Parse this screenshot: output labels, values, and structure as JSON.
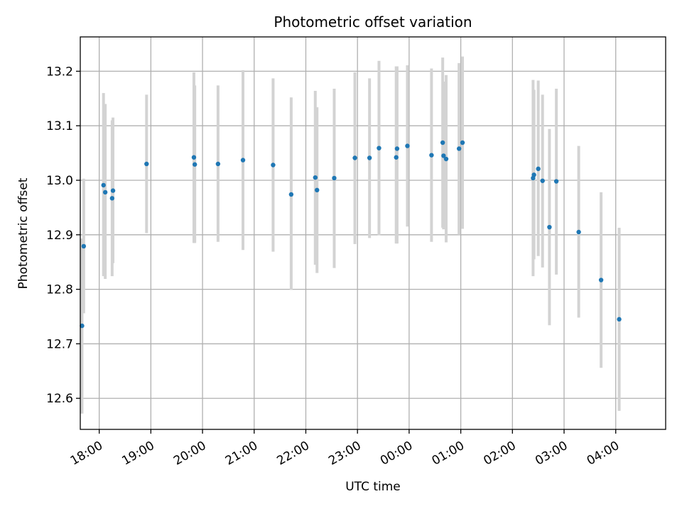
{
  "chart_data": {
    "type": "scatter",
    "title": "Photometric offset variation",
    "xlabel": "UTC time",
    "ylabel": "Photometric offset",
    "x_ticks": [
      "18:00",
      "19:00",
      "20:00",
      "21:00",
      "22:00",
      "23:00",
      "00:00",
      "01:00",
      "02:00",
      "03:00",
      "04:00"
    ],
    "y_ticks": [
      "12.6",
      "12.7",
      "12.8",
      "12.9",
      "13.0",
      "13.1",
      "13.2"
    ],
    "ylim": [
      12.543,
      13.263
    ],
    "xlim": [
      "17:38",
      "04:58"
    ],
    "grid": true,
    "colors": {
      "points": "#1f77b4",
      "errorbars": "#d3d3d3",
      "grid": "#b0b0b0"
    },
    "points": [
      {
        "x": "17:40",
        "y": 12.733,
        "ylow": 12.572,
        "yhigh": 12.893
      },
      {
        "x": "17:42",
        "y": 12.879,
        "ylow": 12.756,
        "yhigh": 13.003
      },
      {
        "x": "18:05",
        "y": 12.991,
        "ylow": 12.824,
        "yhigh": 13.16
      },
      {
        "x": "18:07",
        "y": 12.978,
        "ylow": 12.819,
        "yhigh": 13.14
      },
      {
        "x": "18:15",
        "y": 12.967,
        "ylow": 12.824,
        "yhigh": 13.11
      },
      {
        "x": "18:16",
        "y": 12.981,
        "ylow": 12.848,
        "yhigh": 13.115
      },
      {
        "x": "18:55",
        "y": 13.03,
        "ylow": 12.903,
        "yhigh": 13.157
      },
      {
        "x": "19:50",
        "y": 13.042,
        "ylow": 12.885,
        "yhigh": 13.198
      },
      {
        "x": "19:51",
        "y": 13.029,
        "ylow": 12.885,
        "yhigh": 13.174
      },
      {
        "x": "20:18",
        "y": 13.03,
        "ylow": 12.887,
        "yhigh": 13.174
      },
      {
        "x": "20:47",
        "y": 13.037,
        "ylow": 12.872,
        "yhigh": 13.202
      },
      {
        "x": "21:22",
        "y": 13.028,
        "ylow": 12.869,
        "yhigh": 13.187
      },
      {
        "x": "21:43",
        "y": 12.974,
        "ylow": 12.799,
        "yhigh": 13.152
      },
      {
        "x": "22:11",
        "y": 13.005,
        "ylow": 12.845,
        "yhigh": 13.164
      },
      {
        "x": "22:13",
        "y": 12.982,
        "ylow": 12.83,
        "yhigh": 13.134
      },
      {
        "x": "22:33",
        "y": 13.004,
        "ylow": 12.839,
        "yhigh": 13.168
      },
      {
        "x": "22:57",
        "y": 13.041,
        "ylow": 12.883,
        "yhigh": 13.198
      },
      {
        "x": "23:14",
        "y": 13.041,
        "ylow": 12.894,
        "yhigh": 13.187
      },
      {
        "x": "23:25",
        "y": 13.059,
        "ylow": 12.899,
        "yhigh": 13.219
      },
      {
        "x": "23:45",
        "y": 13.042,
        "ylow": 12.884,
        "yhigh": 13.209
      },
      {
        "x": "23:46",
        "y": 13.058,
        "ylow": 12.884,
        "yhigh": 13.209
      },
      {
        "x": "23:58",
        "y": 13.063,
        "ylow": 12.915,
        "yhigh": 13.211
      },
      {
        "x": "00:26",
        "y": 13.046,
        "ylow": 12.887,
        "yhigh": 13.205
      },
      {
        "x": "00:39",
        "y": 13.069,
        "ylow": 12.913,
        "yhigh": 13.225
      },
      {
        "x": "00:40",
        "y": 13.045,
        "ylow": 12.91,
        "yhigh": 13.181
      },
      {
        "x": "00:43",
        "y": 13.039,
        "ylow": 12.886,
        "yhigh": 13.193
      },
      {
        "x": "00:58",
        "y": 13.058,
        "ylow": 12.9,
        "yhigh": 13.215
      },
      {
        "x": "01:02",
        "y": 13.069,
        "ylow": 12.911,
        "yhigh": 13.227
      },
      {
        "x": "02:24",
        "y": 13.004,
        "ylow": 12.824,
        "yhigh": 13.184
      },
      {
        "x": "02:25",
        "y": 13.01,
        "ylow": 12.855,
        "yhigh": 13.166
      },
      {
        "x": "02:30",
        "y": 13.021,
        "ylow": 12.861,
        "yhigh": 13.183
      },
      {
        "x": "02:35",
        "y": 12.999,
        "ylow": 12.84,
        "yhigh": 13.157
      },
      {
        "x": "02:43",
        "y": 12.914,
        "ylow": 12.734,
        "yhigh": 13.094
      },
      {
        "x": "02:51",
        "y": 12.998,
        "ylow": 12.827,
        "yhigh": 13.168
      },
      {
        "x": "03:17",
        "y": 12.905,
        "ylow": 12.748,
        "yhigh": 13.063
      },
      {
        "x": "03:43",
        "y": 12.817,
        "ylow": 12.656,
        "yhigh": 12.978
      },
      {
        "x": "04:04",
        "y": 12.745,
        "ylow": 12.577,
        "yhigh": 12.913
      }
    ]
  }
}
